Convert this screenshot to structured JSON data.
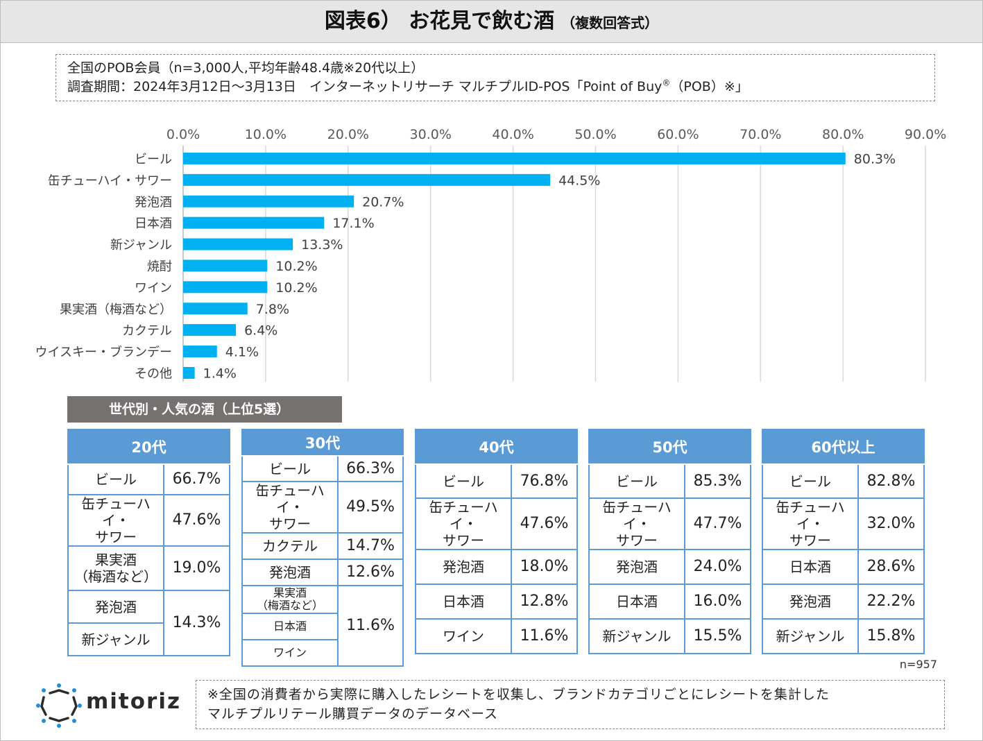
{
  "title": {
    "main": "図表6） お花見で飲む酒",
    "sub": "（複数回答式）"
  },
  "survey": {
    "line1": "全国のPOB会員（n=3,000人,平均年齢48.4歳※20代以上）",
    "line2_pre": "調査期間：2024年3月12日～3月13日　インターネットリサーチ マルチプルID-POS「Point of Buy",
    "line2_mark": "®",
    "line2_post": "（POB）※」"
  },
  "chart_data": {
    "type": "bar",
    "orientation": "horizontal",
    "categories": [
      "ビール",
      "缶チューハイ・サワー",
      "発泡酒",
      "日本酒",
      "新ジャンル",
      "焼酎",
      "ワイン",
      "果実酒（梅酒など）",
      "カクテル",
      "ウイスキー・ブランデー",
      "その他"
    ],
    "values": [
      80.3,
      44.5,
      20.7,
      17.1,
      13.3,
      10.2,
      10.2,
      7.8,
      6.4,
      4.1,
      1.4
    ],
    "value_labels": [
      "80.3%",
      "44.5%",
      "20.7%",
      "17.1%",
      "13.3%",
      "10.2%",
      "10.2%",
      "7.8%",
      "6.4%",
      "4.1%",
      "1.4%"
    ],
    "xlim": [
      0,
      90
    ],
    "ticks": [
      0,
      10,
      20,
      30,
      40,
      50,
      60,
      70,
      80,
      90
    ],
    "tick_labels": [
      "0.0%",
      "10.0%",
      "20.0%",
      "30.0%",
      "40.0%",
      "50.0%",
      "60.0%",
      "70.0%",
      "80.0%",
      "90.0%"
    ],
    "axis_position": "top",
    "grid": true,
    "bar_color": "#00b0f0"
  },
  "generations": {
    "heading": "世代別・人気の酒（上位5選）",
    "g20": {
      "header": "20代",
      "r1": {
        "name": "ビール",
        "value": "66.7%"
      },
      "r2": {
        "name": "缶チューハイ・\nサワー",
        "value": "47.6%"
      },
      "r3": {
        "name": "果実酒\n（梅酒など）",
        "value": "19.0%"
      },
      "r4": {
        "name": "発泡酒"
      },
      "r5": {
        "name": "新ジャンル"
      },
      "tie_value": "14.3%"
    },
    "g30": {
      "header": "30代",
      "r1": {
        "name": "ビール",
        "value": "66.3%"
      },
      "r2": {
        "name": "缶チューハイ・\nサワー",
        "value": "49.5%"
      },
      "r3": {
        "name": "カクテル",
        "value": "14.7%"
      },
      "r4": {
        "name": "発泡酒",
        "value": "12.6%"
      },
      "r5": {
        "name": "果実酒\n（梅酒など）"
      },
      "r6": {
        "name": "日本酒"
      },
      "r7": {
        "name": "ワイン"
      },
      "tie_value": "11.6%"
    },
    "g40": {
      "header": "40代",
      "r1": {
        "name": "ビール",
        "value": "76.8%"
      },
      "r2": {
        "name": "缶チューハイ・\nサワー",
        "value": "47.6%"
      },
      "r3": {
        "name": "発泡酒",
        "value": "18.0%"
      },
      "r4": {
        "name": "日本酒",
        "value": "12.8%"
      },
      "r5": {
        "name": "ワイン",
        "value": "11.6%"
      }
    },
    "g50": {
      "header": "50代",
      "r1": {
        "name": "ビール",
        "value": "85.3%"
      },
      "r2": {
        "name": "缶チューハイ・\nサワー",
        "value": "47.7%"
      },
      "r3": {
        "name": "発泡酒",
        "value": "24.0%"
      },
      "r4": {
        "name": "日本酒",
        "value": "16.0%"
      },
      "r5": {
        "name": "新ジャンル",
        "value": "15.5%"
      }
    },
    "g60": {
      "header": "60代以上",
      "r1": {
        "name": "ビール",
        "value": "82.8%"
      },
      "r2": {
        "name": "缶チューハイ・\nサワー",
        "value": "32.0%"
      },
      "r3": {
        "name": "日本酒",
        "value": "28.6%"
      },
      "r4": {
        "name": "発泡酒",
        "value": "22.2%"
      },
      "r5": {
        "name": "新ジャンル",
        "value": "15.8%"
      }
    },
    "n_note": "n=957"
  },
  "footer": {
    "logo_text": "mitoriz",
    "note_line1": "※全国の消費者から実際に購入したレシートを収集し、ブランドカテゴリごとにレシートを集計した",
    "note_line2": "マルチプルリテール購買データのデータベース"
  },
  "colors": {
    "bar": "#00b0f0",
    "table_header": "#5b9bd5",
    "section_label": "#767171",
    "title_bg": "#e6e6e6",
    "logo_blue": "#1f8fd8"
  }
}
